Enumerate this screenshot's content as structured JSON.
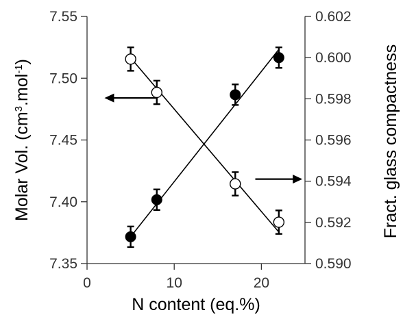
{
  "chart_data": {
    "type": "scatter",
    "xlabel": "N content (eq.%)",
    "ylabel_left_parts": [
      "Molar Vol. (cm",
      "3",
      ".mol",
      "-1",
      ")"
    ],
    "ylabel_right": "Fract. glass compactness",
    "x_ticks": [
      "0",
      "10",
      "20"
    ],
    "x_tick_values": [
      0,
      10,
      20
    ],
    "xlim": [
      0,
      25
    ],
    "y_left_ticks": [
      "7.35",
      "7.40",
      "7.45",
      "7.50",
      "7.55"
    ],
    "y_left_tick_values": [
      7.35,
      7.4,
      7.45,
      7.5,
      7.55
    ],
    "ylim_left": [
      7.35,
      7.55
    ],
    "y_right_ticks": [
      "0.590",
      "0.592",
      "0.594",
      "0.596",
      "0.598",
      "0.600",
      "0.602"
    ],
    "y_right_tick_values": [
      0.59,
      0.592,
      0.594,
      0.596,
      0.598,
      0.6,
      0.602
    ],
    "ylim_right": [
      0.59,
      0.602
    ],
    "series": [
      {
        "marker": "open-circle",
        "axis": "left",
        "x": [
          5,
          8,
          17,
          22
        ],
        "y": [
          7.5155,
          7.4885,
          7.4145,
          7.3835
        ],
        "err": [
          0.0095,
          0.0095,
          0.0095,
          0.0095
        ],
        "fit": [
          [
            5,
            7.5165
          ],
          [
            22,
            7.3755
          ]
        ]
      },
      {
        "marker": "filled-circle",
        "axis": "right",
        "x": [
          5,
          8,
          17,
          22
        ],
        "y": [
          0.5913,
          0.5931,
          0.5982,
          0.6
        ],
        "err": [
          0.0005,
          0.0005,
          0.0005,
          0.0005
        ],
        "fit": [
          [
            5,
            0.5913
          ],
          [
            22,
            0.6004
          ]
        ]
      }
    ],
    "arrows": [
      {
        "points_to": "left",
        "x_from": 7.9,
        "x_to": 2.0,
        "y": 7.484
      },
      {
        "points_to": "right",
        "x_from": 19.3,
        "x_to": 24.7,
        "y": 0.5941
      }
    ],
    "grid": false,
    "legend": "none",
    "colors": {
      "axis": "#333333",
      "marker": "#000000",
      "background": "#ffffff"
    }
  }
}
